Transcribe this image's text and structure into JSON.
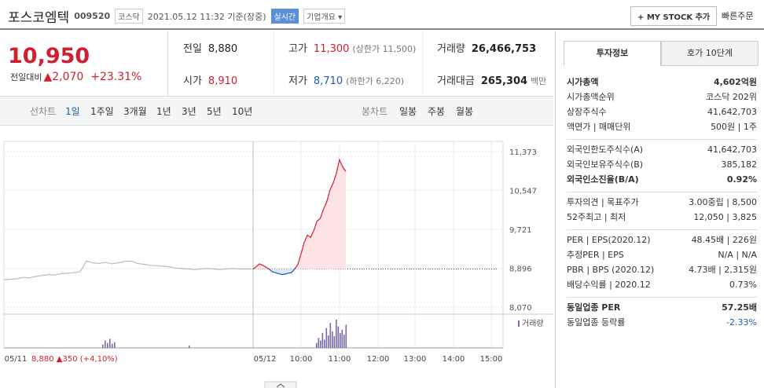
{
  "header": {
    "name": "포스코엠텍",
    "code": "009520",
    "market": "코스닥",
    "time": "2021.05.12 11:32 기준(장중)",
    "realtime": "실시간",
    "overview": "기업개요",
    "mystock": "+ MY STOCK 추가",
    "quick_order": "빠른주문"
  },
  "quote": {
    "price": "10,950",
    "change_label": "전일대비",
    "change": "▲2,070",
    "change_rate": "+23.31%",
    "rows": [
      [
        [
          "전일",
          "8,880",
          ""
        ],
        [
          "고가",
          "11,300",
          "(상한가 11,500)"
        ],
        [
          "거래량",
          "26,466,753",
          ""
        ]
      ],
      [
        [
          "시가",
          "8,910",
          ""
        ],
        [
          "저가",
          "8,710",
          "(하한가 6,220)"
        ],
        [
          "거래대금",
          "265,304",
          "백만"
        ]
      ]
    ]
  },
  "tabs": {
    "line_label": "선차트",
    "line": [
      "1일",
      "1주일",
      "3개월",
      "1년",
      "3년",
      "5년",
      "10년"
    ],
    "candle_label": "봉차트",
    "candle": [
      "일봉",
      "주봉",
      "월봉"
    ]
  },
  "chart": {
    "type": "line",
    "baseline": 8880,
    "ylim": [
      7920,
      11590
    ],
    "yticks": [
      {
        "value": 11373,
        "label": "11,373"
      },
      {
        "value": 10547,
        "label": "10,547"
      },
      {
        "value": 9721,
        "label": "9,721"
      },
      {
        "value": 8896,
        "label": "8,896"
      },
      {
        "value": 8070,
        "label": "8,070"
      }
    ],
    "categories": [
      "05/11",
      "05/12",
      "10:00",
      "11:00",
      "12:00",
      "13:00",
      "14:00",
      "15:00"
    ],
    "prev_day": [
      8650,
      8660,
      8670,
      8700,
      8690,
      8720,
      8740,
      8760,
      8750,
      8780,
      8790,
      8800,
      8820,
      9050,
      9010,
      9000,
      9020,
      8990,
      9010,
      9040,
      9050,
      9000,
      8980,
      8960,
      8950,
      8940,
      8930,
      8900,
      8890,
      8880,
      8870,
      8880,
      8890,
      8880,
      8870,
      8880,
      8890,
      8880,
      8880,
      8880
    ],
    "today": [
      8880,
      8930,
      8990,
      8960,
      8920,
      8880,
      8820,
      8800,
      8780,
      8760,
      8770,
      8790,
      8800,
      8880,
      8980,
      9200,
      9450,
      9600,
      9550,
      9700,
      9900,
      9950,
      10150,
      10300,
      10550,
      10700,
      10900,
      11200,
      11050,
      10950
    ],
    "volume_label": "거래량",
    "prev_volume": [
      4,
      9,
      6,
      11,
      5,
      7,
      3
    ],
    "volume": [
      6,
      12,
      9,
      18,
      10,
      24,
      15,
      30,
      20,
      14,
      34,
      26,
      18,
      22,
      16,
      28
    ],
    "legend": "8,880 ▲350 (+4,10%)"
  },
  "side": {
    "tabs": [
      "투자정보",
      "호가 10단계"
    ],
    "sections": [
      [
        [
          "시가총액",
          "4,602억원",
          true
        ],
        [
          "시가총액순위",
          "코스닥 202위",
          false
        ],
        [
          "상장주식수",
          "41,642,703",
          false
        ],
        [
          "액면가 | 매매단위",
          "500원 | 1주",
          false
        ]
      ],
      [
        [
          "외국인한도주식수(A)",
          "41,642,703",
          false
        ],
        [
          "외국인보유주식수(B)",
          "385,182",
          false
        ],
        [
          "외국인소진율(B/A)",
          "0.92%",
          true
        ]
      ],
      [
        [
          "투자의견 | 목표주가",
          "3.00중립 | 8,500",
          false
        ],
        [
          "52주최고 | 최저",
          "12,050 | 3,825",
          false
        ]
      ],
      [
        [
          "PER | EPS(2020.12)",
          "48.45배 | 226원",
          false
        ],
        [
          "추정PER | EPS",
          "N/A | N/A",
          false
        ],
        [
          "PBR | BPS (2020.12)",
          "4.73배 | 2,315원",
          false
        ],
        [
          "배당수익률 | 2020.12",
          "0.73%",
          false
        ]
      ],
      [
        [
          "동일업종 PER",
          "57.25배",
          true
        ],
        [
          "동일업종 등락률",
          "-2.33%",
          false
        ]
      ]
    ]
  }
}
